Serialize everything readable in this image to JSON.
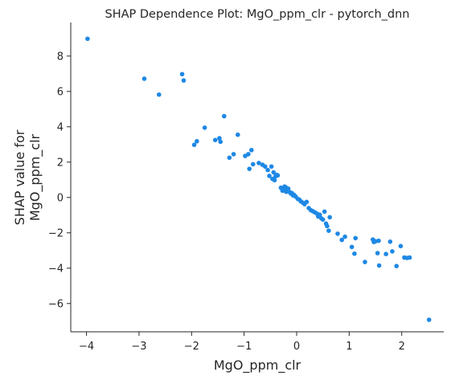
{
  "chart_data": {
    "type": "scatter",
    "title": "SHAP Dependence Plot: MgO_ppm_clr - pytorch_dnn",
    "xlabel": "MgO_ppm_clr",
    "ylabel_lines": [
      "SHAP value for",
      "MgO_ppm_clr"
    ],
    "xlim": [
      -4.3,
      2.8
    ],
    "ylim": [
      -7.6,
      9.9
    ],
    "xticks": [
      -4,
      -3,
      -2,
      -1,
      0,
      1,
      2
    ],
    "yticks": [
      -6,
      -4,
      -2,
      0,
      2,
      4,
      6,
      8
    ],
    "xtick_labels": [
      "−4",
      "−3",
      "−2",
      "−1",
      "0",
      "1",
      "2"
    ],
    "ytick_labels": [
      "−6",
      "−4",
      "−2",
      "0",
      "2",
      "4",
      "6",
      "8"
    ],
    "grid": false,
    "marker_color": "#1e88e5",
    "points": [
      [
        -3.98,
        8.98
      ],
      [
        -2.9,
        6.72
      ],
      [
        -2.62,
        5.82
      ],
      [
        -2.18,
        6.98
      ],
      [
        -2.15,
        6.62
      ],
      [
        -1.95,
        2.98
      ],
      [
        -1.9,
        3.18
      ],
      [
        -1.75,
        3.95
      ],
      [
        -1.55,
        3.25
      ],
      [
        -1.47,
        3.35
      ],
      [
        -1.45,
        3.15
      ],
      [
        -1.38,
        4.6
      ],
      [
        -1.28,
        2.25
      ],
      [
        -1.2,
        2.45
      ],
      [
        -1.12,
        3.55
      ],
      [
        -0.98,
        2.35
      ],
      [
        -0.92,
        2.45
      ],
      [
        -0.9,
        1.62
      ],
      [
        -0.86,
        2.68
      ],
      [
        -0.83,
        1.88
      ],
      [
        -0.72,
        1.95
      ],
      [
        -0.65,
        1.85
      ],
      [
        -0.6,
        1.75
      ],
      [
        -0.55,
        1.55
      ],
      [
        -0.52,
        1.22
      ],
      [
        -0.48,
        1.75
      ],
      [
        -0.46,
        1.05
      ],
      [
        -0.44,
        1.42
      ],
      [
        -0.42,
        0.98
      ],
      [
        -0.4,
        1.2
      ],
      [
        -0.38,
        1.28
      ],
      [
        -0.36,
        1.25
      ],
      [
        -0.3,
        0.55
      ],
      [
        -0.27,
        0.38
      ],
      [
        -0.25,
        0.48
      ],
      [
        -0.23,
        0.62
      ],
      [
        -0.21,
        0.58
      ],
      [
        -0.2,
        0.32
      ],
      [
        -0.18,
        0.45
      ],
      [
        -0.16,
        0.5
      ],
      [
        -0.13,
        0.3
      ],
      [
        -0.11,
        0.22
      ],
      [
        -0.09,
        0.25
      ],
      [
        -0.07,
        0.12
      ],
      [
        -0.05,
        0.15
      ],
      [
        -0.02,
        0.05
      ],
      [
        0.02,
        -0.08
      ],
      [
        0.05,
        -0.12
      ],
      [
        0.08,
        -0.22
      ],
      [
        0.12,
        -0.3
      ],
      [
        0.15,
        -0.38
      ],
      [
        0.19,
        -0.25
      ],
      [
        0.23,
        -0.6
      ],
      [
        0.27,
        -0.72
      ],
      [
        0.31,
        -0.78
      ],
      [
        0.35,
        -0.85
      ],
      [
        0.39,
        -0.92
      ],
      [
        0.41,
        -1.08
      ],
      [
        0.44,
        -0.98
      ],
      [
        0.47,
        -1.18
      ],
      [
        0.5,
        -1.25
      ],
      [
        0.53,
        -0.8
      ],
      [
        0.56,
        -1.48
      ],
      [
        0.58,
        -1.62
      ],
      [
        0.61,
        -1.88
      ],
      [
        0.63,
        -1.12
      ],
      [
        0.78,
        -2.05
      ],
      [
        0.86,
        -2.4
      ],
      [
        0.92,
        -2.22
      ],
      [
        1.05,
        -2.8
      ],
      [
        1.1,
        -3.18
      ],
      [
        1.12,
        -2.3
      ],
      [
        1.3,
        -3.65
      ],
      [
        1.45,
        -2.38
      ],
      [
        1.47,
        -2.52
      ],
      [
        1.5,
        -2.48
      ],
      [
        1.54,
        -3.15
      ],
      [
        1.56,
        -2.45
      ],
      [
        1.57,
        -3.85
      ],
      [
        1.7,
        -3.2
      ],
      [
        1.78,
        -2.5
      ],
      [
        1.82,
        -3.05
      ],
      [
        1.9,
        -3.88
      ],
      [
        1.98,
        -2.75
      ],
      [
        2.05,
        -3.4
      ],
      [
        2.1,
        -3.42
      ],
      [
        2.15,
        -3.4
      ],
      [
        2.52,
        -6.92
      ]
    ]
  }
}
